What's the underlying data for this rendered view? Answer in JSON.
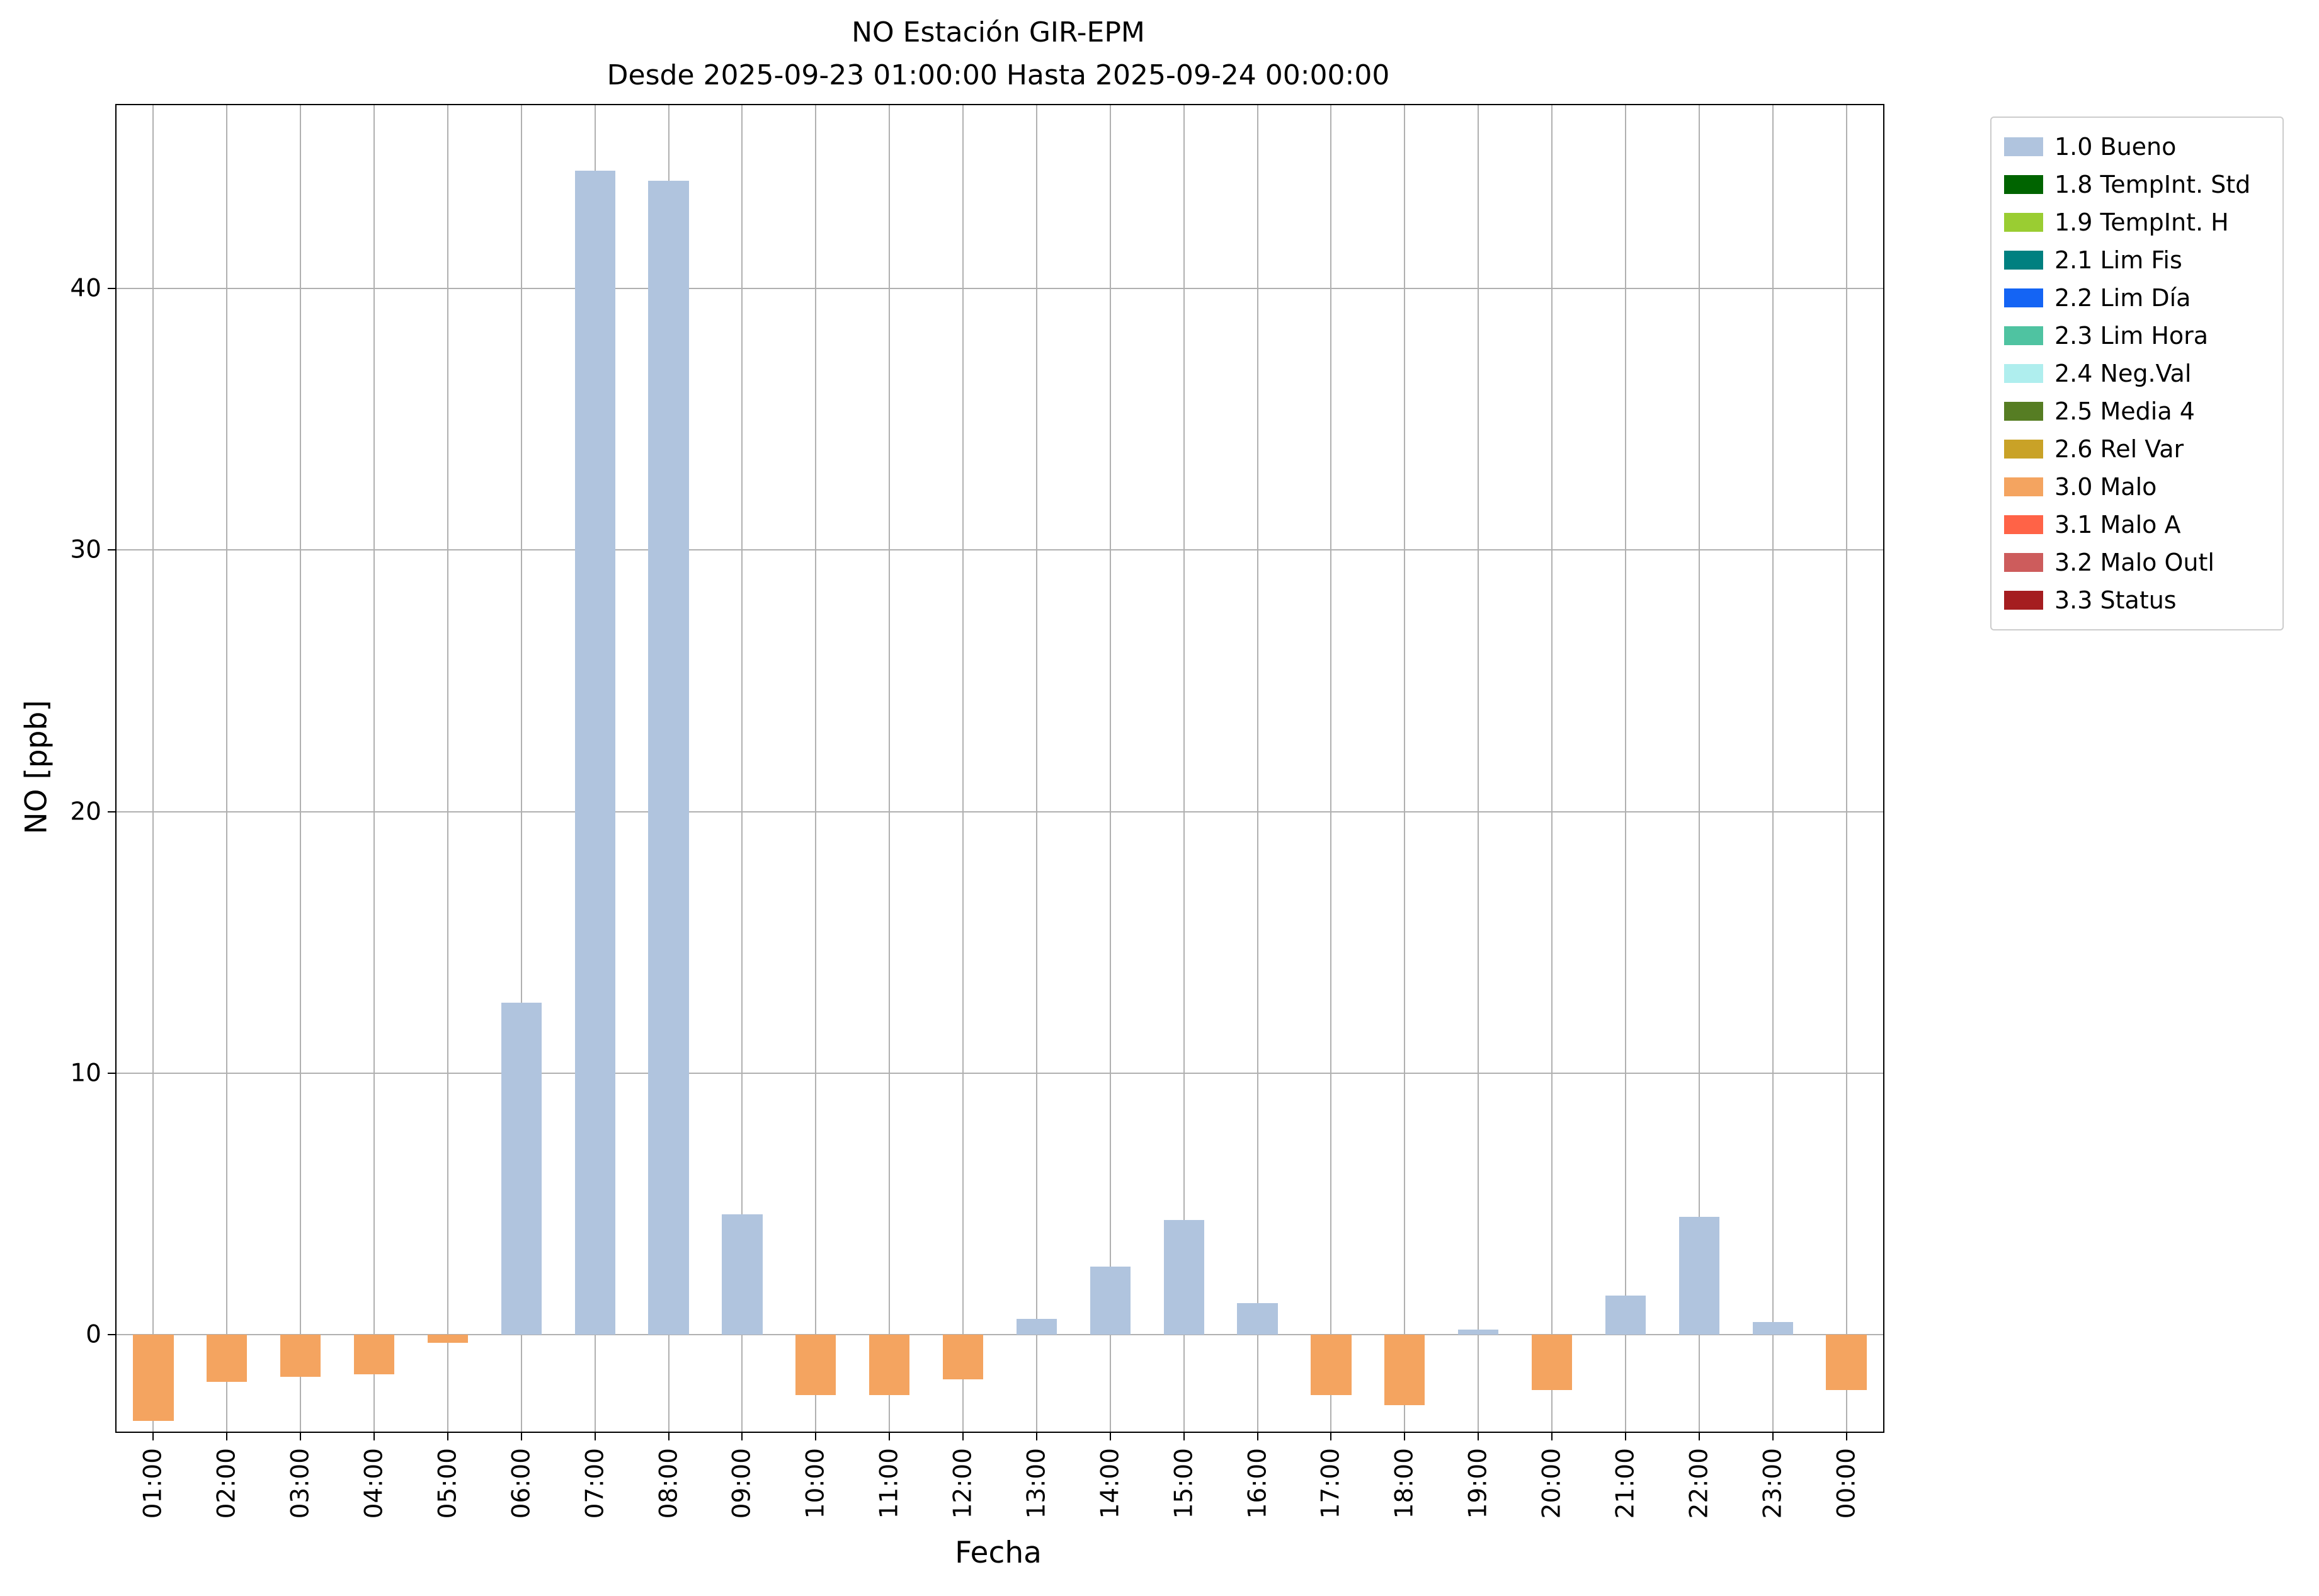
{
  "chart_data": {
    "type": "bar",
    "title": "NO Estación GIR-EPM",
    "subtitle": "Desde 2025-09-23 01:00:00 Hasta 2025-09-24 00:00:00",
    "xlabel": "Fecha",
    "ylabel": "NO [ppb]",
    "ylim": [
      -3.7,
      47
    ],
    "yticks": [
      0,
      10,
      20,
      30,
      40
    ],
    "grid": true,
    "legend_position": "upper right, outside axes",
    "categories": [
      "01:00",
      "02:00",
      "03:00",
      "04:00",
      "05:00",
      "06:00",
      "07:00",
      "08:00",
      "09:00",
      "10:00",
      "11:00",
      "12:00",
      "13:00",
      "14:00",
      "15:00",
      "16:00",
      "17:00",
      "18:00",
      "19:00",
      "20:00",
      "21:00",
      "22:00",
      "23:00",
      "00:00"
    ],
    "points": [
      {
        "x": "01:00",
        "value": -3.3,
        "flag": "3.0 Malo"
      },
      {
        "x": "02:00",
        "value": -1.8,
        "flag": "3.0 Malo"
      },
      {
        "x": "03:00",
        "value": -1.6,
        "flag": "3.0 Malo"
      },
      {
        "x": "04:00",
        "value": -1.5,
        "flag": "3.0 Malo"
      },
      {
        "x": "05:00",
        "value": -0.3,
        "flag": "3.0 Malo"
      },
      {
        "x": "06:00",
        "value": 12.7,
        "flag": "1.0 Bueno"
      },
      {
        "x": "07:00",
        "value": 44.5,
        "flag": "1.0 Bueno"
      },
      {
        "x": "08:00",
        "value": 44.1,
        "flag": "1.0 Bueno"
      },
      {
        "x": "09:00",
        "value": 4.6,
        "flag": "1.0 Bueno"
      },
      {
        "x": "10:00",
        "value": -2.3,
        "flag": "3.0 Malo"
      },
      {
        "x": "11:00",
        "value": -2.3,
        "flag": "3.0 Malo"
      },
      {
        "x": "12:00",
        "value": -1.7,
        "flag": "3.0 Malo"
      },
      {
        "x": "13:00",
        "value": 0.6,
        "flag": "1.0 Bueno"
      },
      {
        "x": "14:00",
        "value": 2.6,
        "flag": "1.0 Bueno"
      },
      {
        "x": "15:00",
        "value": 4.4,
        "flag": "1.0 Bueno"
      },
      {
        "x": "16:00",
        "value": 1.2,
        "flag": "1.0 Bueno"
      },
      {
        "x": "17:00",
        "value": -2.3,
        "flag": "3.0 Malo"
      },
      {
        "x": "18:00",
        "value": -2.7,
        "flag": "3.0 Malo"
      },
      {
        "x": "19:00",
        "value": 0.2,
        "flag": "1.0 Bueno"
      },
      {
        "x": "20:00",
        "value": -2.1,
        "flag": "3.0 Malo"
      },
      {
        "x": "21:00",
        "value": 1.5,
        "flag": "1.0 Bueno"
      },
      {
        "x": "22:00",
        "value": 4.5,
        "flag": "1.0 Bueno"
      },
      {
        "x": "23:00",
        "value": 0.5,
        "flag": "1.0 Bueno"
      },
      {
        "x": "00:00",
        "value": -2.1,
        "flag": "3.0 Malo"
      }
    ],
    "legend": [
      {
        "label": "1.0 Bueno",
        "color": "#b0c4de"
      },
      {
        "label": "1.8 TempInt. Std",
        "color": "#006400"
      },
      {
        "label": "1.9 TempInt. H",
        "color": "#9acd32"
      },
      {
        "label": "2.1 Lim Fis",
        "color": "#008080"
      },
      {
        "label": "2.2 Lim Día",
        "color": "#1464f4"
      },
      {
        "label": "2.3 Lim Hora",
        "color": "#4fc3a1"
      },
      {
        "label": "2.4 Neg.Val",
        "color": "#afeeee"
      },
      {
        "label": "2.5 Media 4",
        "color": "#567d23"
      },
      {
        "label": "2.6 Rel Var",
        "color": "#c9a227"
      },
      {
        "label": "3.0 Malo",
        "color": "#f4a460"
      },
      {
        "label": "3.1 Malo A",
        "color": "#ff6347"
      },
      {
        "label": "3.2 Malo Outl",
        "color": "#cd5c5c"
      },
      {
        "label": "3.3 Status",
        "color": "#a51d20"
      }
    ]
  }
}
